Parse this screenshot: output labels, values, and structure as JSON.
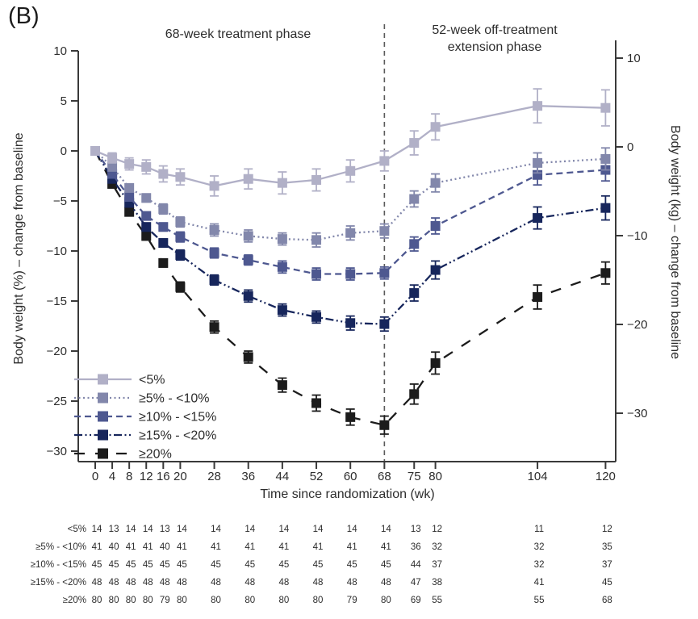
{
  "panel_label": "(B)",
  "phases": {
    "treatment": "68-week treatment phase",
    "extension_line1": "52-week off-treatment",
    "extension_line2": "extension phase"
  },
  "colors": {
    "axis": "#3a3a3a",
    "text": "#2d2d2d",
    "divider": "#5a5a5a",
    "background": "#ffffff"
  },
  "chart_data": {
    "type": "line",
    "title": "",
    "x_label": "Time since randomization (wk)",
    "y_left_label": "Body weight (%) – change from baseline",
    "y_right_label": "Body weight (kg) – change from baseline",
    "x_ticks": [
      0,
      4,
      8,
      12,
      16,
      20,
      28,
      36,
      44,
      52,
      60,
      68,
      75,
      80,
      104,
      120
    ],
    "y_left_ticks": [
      10,
      5,
      0,
      -5,
      -10,
      -15,
      -20,
      -25,
      -30
    ],
    "y_right_ticks": [
      10,
      0,
      -10,
      -20,
      -30
    ],
    "y_left_range": [
      -30,
      10
    ],
    "x_range": [
      0,
      120
    ],
    "divider_week": 68,
    "grid": false,
    "legend_position": "inside-bottom-left",
    "x": [
      0,
      4,
      8,
      12,
      16,
      20,
      28,
      36,
      44,
      52,
      60,
      68,
      75,
      80,
      104,
      120
    ],
    "series": [
      {
        "name": "<5%",
        "color": "#b1b0c7",
        "line_style": "solid",
        "values": [
          0,
          -0.7,
          -1.3,
          -1.6,
          -2.3,
          -2.6,
          -3.5,
          -2.8,
          -3.2,
          -2.9,
          -2.0,
          -1.0,
          0.8,
          2.4,
          4.5,
          4.3
        ],
        "errors": [
          0.2,
          0.5,
          0.6,
          0.7,
          0.8,
          0.8,
          1.0,
          1.0,
          1.1,
          1.1,
          1.1,
          1.0,
          1.2,
          1.3,
          1.7,
          1.8
        ]
      },
      {
        "name": "≥5% - <10%",
        "color": "#8287ab",
        "line_style": "dotted",
        "values": [
          0,
          -1.6,
          -3.7,
          -4.7,
          -5.8,
          -7.1,
          -7.9,
          -8.5,
          -8.8,
          -8.9,
          -8.2,
          -8.0,
          -4.8,
          -3.2,
          -1.2,
          -0.8
        ],
        "errors": [
          0.1,
          0.3,
          0.4,
          0.4,
          0.5,
          0.5,
          0.6,
          0.6,
          0.6,
          0.7,
          0.7,
          0.7,
          0.8,
          0.9,
          1.0,
          1.1
        ]
      },
      {
        "name": "≥10% - <15%",
        "color": "#4e5890",
        "line_style": "dashed",
        "values": [
          0,
          -2.3,
          -4.6,
          -6.5,
          -7.6,
          -8.6,
          -10.2,
          -10.9,
          -11.6,
          -12.3,
          -12.3,
          -12.2,
          -9.3,
          -7.5,
          -2.4,
          -1.9
        ],
        "errors": [
          0.1,
          0.3,
          0.3,
          0.4,
          0.4,
          0.5,
          0.5,
          0.5,
          0.6,
          0.6,
          0.6,
          0.6,
          0.7,
          0.8,
          1.0,
          1.1
        ]
      },
      {
        "name": "≥15% - <20%",
        "color": "#17265c",
        "line_style": "dash-dot",
        "values": [
          0,
          -2.8,
          -5.2,
          -7.6,
          -9.2,
          -10.4,
          -12.9,
          -14.5,
          -15.9,
          -16.6,
          -17.2,
          -17.3,
          -14.2,
          -11.9,
          -6.7,
          -5.7
        ],
        "errors": [
          0.1,
          0.3,
          0.3,
          0.4,
          0.4,
          0.5,
          0.5,
          0.6,
          0.6,
          0.6,
          0.7,
          0.7,
          0.8,
          0.9,
          1.1,
          1.2
        ]
      },
      {
        "name": "≥20%",
        "color": "#1c1c1c",
        "line_style": "long-dash",
        "values": [
          0,
          -3.3,
          -6.1,
          -8.5,
          -11.2,
          -13.6,
          -17.6,
          -20.6,
          -23.4,
          -25.2,
          -26.6,
          -27.4,
          -24.3,
          -21.2,
          -14.6,
          -12.2
        ],
        "errors": [
          0.1,
          0.2,
          0.3,
          0.4,
          0.4,
          0.5,
          0.6,
          0.6,
          0.7,
          0.8,
          0.8,
          0.9,
          1.0,
          1.1,
          1.2,
          1.1
        ]
      }
    ]
  },
  "risk_table": {
    "rows": [
      {
        "label": "<5%",
        "counts": [
          14,
          13,
          14,
          14,
          13,
          14,
          14,
          14,
          14,
          14,
          14,
          14,
          13,
          12,
          11,
          12
        ]
      },
      {
        "label": "≥5% - <10%",
        "counts": [
          41,
          40,
          41,
          41,
          40,
          41,
          41,
          41,
          41,
          41,
          41,
          41,
          36,
          32,
          32,
          35
        ]
      },
      {
        "label": "≥10% - <15%",
        "counts": [
          45,
          45,
          45,
          45,
          45,
          45,
          45,
          45,
          45,
          45,
          45,
          45,
          44,
          37,
          32,
          37
        ]
      },
      {
        "label": "≥15% - <20%",
        "counts": [
          48,
          48,
          48,
          48,
          48,
          48,
          48,
          48,
          48,
          48,
          48,
          48,
          47,
          38,
          41,
          45
        ]
      },
      {
        "label": "≥20%",
        "counts": [
          80,
          80,
          80,
          80,
          79,
          80,
          80,
          80,
          80,
          80,
          79,
          80,
          69,
          55,
          55,
          68
        ]
      }
    ]
  }
}
